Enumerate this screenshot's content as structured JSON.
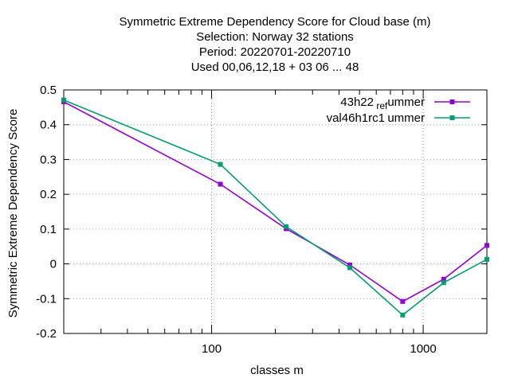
{
  "chart_data": {
    "type": "line",
    "title_lines": [
      "Symmetric Extreme Dependency Score  for Cloud base (m)",
      "Selection: Norway     32 stations",
      "Period: 20220701-20220710",
      "Used  00,06,12,18  + 03 06 ... 48"
    ],
    "xlabel": "classes m",
    "ylabel": "Symmetric Extreme Dependency Score",
    "xscale": "log",
    "xlim": [
      20,
      2000
    ],
    "ylim": [
      -0.2,
      0.5
    ],
    "x_ticks": [
      100,
      1000
    ],
    "x_tick_labels": [
      "100",
      "1000"
    ],
    "y_ticks": [
      -0.2,
      -0.1,
      0,
      0.1,
      0.2,
      0.3,
      0.4,
      0.5
    ],
    "y_tick_labels": [
      "-0.2",
      "-0.1",
      "0",
      "0.1",
      "0.2",
      "0.3",
      "0.4",
      "0.5"
    ],
    "grid": true,
    "legend_position": "top-right",
    "series": [
      {
        "name": "43h22_ref_summer",
        "legend_main": "43h22",
        "legend_sub": [
          {
            "text": " ref",
            "sub": true
          },
          {
            "text": "ummer",
            "sub": false
          }
        ],
        "color": "#9400d3",
        "x": [
          20,
          110,
          225,
          450,
          800,
          1250,
          2000
        ],
        "y": [
          0.466,
          0.229,
          0.101,
          -0.003,
          -0.108,
          -0.044,
          0.053
        ]
      },
      {
        "name": "val46h1rc1_summer",
        "legend_main": "val46h1rc1",
        "legend_sub": [
          {
            "text": " ",
            "sub": true
          },
          {
            "text": "ummer",
            "sub": false
          }
        ],
        "color": "#009e73",
        "x": [
          20,
          110,
          225,
          450,
          800,
          1250,
          2000
        ],
        "y": [
          0.471,
          0.286,
          0.107,
          -0.011,
          -0.147,
          -0.054,
          0.013
        ]
      }
    ]
  }
}
